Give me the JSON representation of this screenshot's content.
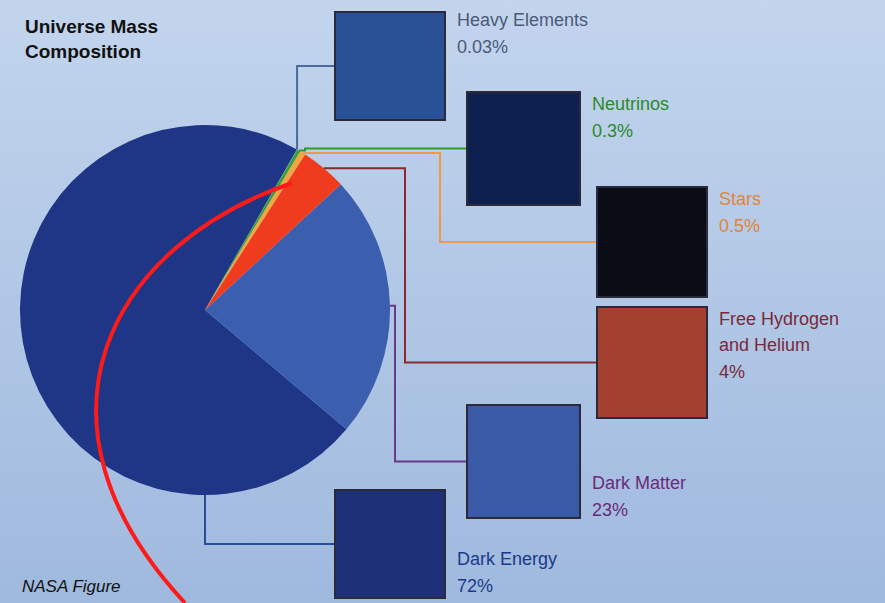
{
  "chart_data": {
    "type": "pie",
    "title": "Universe Mass Composition",
    "categories": [
      "Heavy Elements",
      "Neutrinos",
      "Stars",
      "Free Hydrogen and Helium",
      "Dark Matter",
      "Dark Energy"
    ],
    "values": [
      0.03,
      0.3,
      0.5,
      4,
      23,
      72
    ],
    "value_labels": [
      "0.03%",
      "0.3%",
      "0.5%",
      "4%",
      "23%",
      "72%"
    ],
    "colors": [
      "#7aa0d8",
      "#3aa03a",
      "#f2a540",
      "#f03c1e",
      "#3c5eae",
      "#1f3585"
    ],
    "data_labels": true,
    "annotations": [
      "NASA Figure"
    ]
  }
}
